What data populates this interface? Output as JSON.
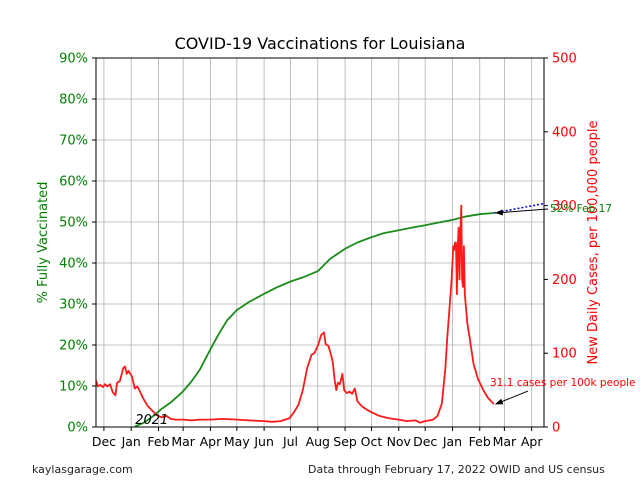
{
  "chart_data": {
    "type": "line",
    "title": "COVID-19 Vaccinations for Louisiana",
    "x_tick_labels": [
      "Dec",
      "Jan",
      "Feb",
      "Mar",
      "Apr",
      "May",
      "Jun",
      "Jul",
      "Aug",
      "Sep",
      "Oct",
      "Nov",
      "Dec",
      "Jan",
      "Feb",
      "Mar",
      "Apr"
    ],
    "x_tick_dates": [
      "2020-12-01",
      "2021-01-01",
      "2021-02-01",
      "2021-03-01",
      "2021-04-01",
      "2021-05-01",
      "2021-06-01",
      "2021-07-01",
      "2021-08-01",
      "2021-09-01",
      "2021-10-01",
      "2021-11-01",
      "2021-12-01",
      "2022-01-01",
      "2022-02-01",
      "2022-03-01",
      "2022-04-01"
    ],
    "xlim": [
      "2020-11-22",
      "2022-04-15"
    ],
    "year_marker": {
      "label": "2021",
      "date": "2021-01-01"
    },
    "y_left": {
      "label": "% Fully Vaccinated",
      "range": [
        0,
        90
      ],
      "ticks": [
        0,
        10,
        20,
        30,
        40,
        50,
        60,
        70,
        80,
        90
      ],
      "tick_suffix": "%",
      "color": "#008000"
    },
    "y_right": {
      "label": "New Daily Cases, per 100,000 people",
      "range": [
        0,
        500
      ],
      "ticks": [
        0,
        100,
        200,
        300,
        400,
        500
      ],
      "color": "#ff0000"
    },
    "grid": true,
    "series": [
      {
        "axis": "left",
        "color": "#1a8c1a",
        "points": [
          [
            "2021-01-05",
            0.1
          ],
          [
            "2021-01-15",
            1.0
          ],
          [
            "2021-01-25",
            2.5
          ],
          [
            "2021-02-05",
            4.5
          ],
          [
            "2021-02-15",
            6.0
          ],
          [
            "2021-02-28",
            8.5
          ],
          [
            "2021-03-10",
            11.0
          ],
          [
            "2021-03-20",
            14.0
          ],
          [
            "2021-03-31",
            18.5
          ],
          [
            "2021-04-10",
            22.5
          ],
          [
            "2021-04-20",
            26.0
          ],
          [
            "2021-05-01",
            28.5
          ],
          [
            "2021-05-15",
            30.5
          ],
          [
            "2021-06-01",
            32.5
          ],
          [
            "2021-06-15",
            34.0
          ],
          [
            "2021-07-01",
            35.5
          ],
          [
            "2021-07-15",
            36.5
          ],
          [
            "2021-08-01",
            38.0
          ],
          [
            "2021-08-15",
            41.0
          ],
          [
            "2021-09-01",
            43.5
          ],
          [
            "2021-09-15",
            45.0
          ],
          [
            "2021-10-01",
            46.3
          ],
          [
            "2021-10-15",
            47.3
          ],
          [
            "2021-11-01",
            48.0
          ],
          [
            "2021-11-15",
            48.6
          ],
          [
            "2021-12-01",
            49.2
          ],
          [
            "2021-12-15",
            49.8
          ],
          [
            "2022-01-01",
            50.5
          ],
          [
            "2022-01-15",
            51.3
          ],
          [
            "2022-02-01",
            51.9
          ],
          [
            "2022-02-17",
            52.2
          ]
        ]
      },
      {
        "axis": "right",
        "color": "#ff1a1a",
        "points": [
          [
            "2020-11-22",
            63
          ],
          [
            "2020-11-24",
            55
          ],
          [
            "2020-11-27",
            57
          ],
          [
            "2020-11-30",
            54
          ],
          [
            "2020-12-02",
            58
          ],
          [
            "2020-12-05",
            55
          ],
          [
            "2020-12-08",
            58
          ],
          [
            "2020-12-11",
            47
          ],
          [
            "2020-12-14",
            43
          ],
          [
            "2020-12-16",
            60
          ],
          [
            "2020-12-19",
            62
          ],
          [
            "2020-12-23",
            80
          ],
          [
            "2020-12-25",
            82
          ],
          [
            "2020-12-27",
            72
          ],
          [
            "2020-12-29",
            76
          ],
          [
            "2021-01-02",
            68
          ],
          [
            "2021-01-05",
            52
          ],
          [
            "2021-01-08",
            55
          ],
          [
            "2021-01-11",
            48
          ],
          [
            "2021-01-15",
            38
          ],
          [
            "2021-01-20",
            28
          ],
          [
            "2021-01-25",
            22
          ],
          [
            "2021-01-30",
            16
          ],
          [
            "2021-02-05",
            13
          ],
          [
            "2021-02-10",
            15
          ],
          [
            "2021-02-15",
            11
          ],
          [
            "2021-02-20",
            10
          ],
          [
            "2021-03-01",
            10
          ],
          [
            "2021-03-10",
            9
          ],
          [
            "2021-03-20",
            10
          ],
          [
            "2021-04-01",
            10
          ],
          [
            "2021-04-15",
            11
          ],
          [
            "2021-05-01",
            10
          ],
          [
            "2021-05-15",
            9
          ],
          [
            "2021-06-01",
            8
          ],
          [
            "2021-06-10",
            7
          ],
          [
            "2021-06-20",
            8
          ],
          [
            "2021-06-30",
            12
          ],
          [
            "2021-07-05",
            20
          ],
          [
            "2021-07-10",
            30
          ],
          [
            "2021-07-15",
            50
          ],
          [
            "2021-07-20",
            80
          ],
          [
            "2021-07-25",
            98
          ],
          [
            "2021-07-28",
            100
          ],
          [
            "2021-08-01",
            110
          ],
          [
            "2021-08-05",
            125
          ],
          [
            "2021-08-08",
            128
          ],
          [
            "2021-08-10",
            112
          ],
          [
            "2021-08-13",
            110
          ],
          [
            "2021-08-16",
            98
          ],
          [
            "2021-08-18",
            88
          ],
          [
            "2021-08-20",
            65
          ],
          [
            "2021-08-22",
            50
          ],
          [
            "2021-08-24",
            60
          ],
          [
            "2021-08-26",
            58
          ],
          [
            "2021-08-29",
            72
          ],
          [
            "2021-08-31",
            50
          ],
          [
            "2021-09-03",
            46
          ],
          [
            "2021-09-06",
            48
          ],
          [
            "2021-09-09",
            45
          ],
          [
            "2021-09-12",
            52
          ],
          [
            "2021-09-15",
            35
          ],
          [
            "2021-09-20",
            28
          ],
          [
            "2021-09-25",
            24
          ],
          [
            "2021-10-01",
            20
          ],
          [
            "2021-10-10",
            15
          ],
          [
            "2021-10-20",
            12
          ],
          [
            "2021-11-01",
            10
          ],
          [
            "2021-11-10",
            8
          ],
          [
            "2021-11-20",
            9
          ],
          [
            "2021-11-25",
            6
          ],
          [
            "2021-12-01",
            8
          ],
          [
            "2021-12-10",
            10
          ],
          [
            "2021-12-15",
            15
          ],
          [
            "2021-12-20",
            32
          ],
          [
            "2021-12-24",
            80
          ],
          [
            "2021-12-26",
            120
          ],
          [
            "2021-12-28",
            150
          ],
          [
            "2021-12-31",
            200
          ],
          [
            "2022-01-02",
            245
          ],
          [
            "2022-01-03",
            240
          ],
          [
            "2022-01-04",
            250
          ],
          [
            "2022-01-05",
            250
          ],
          [
            "2022-01-06",
            180
          ],
          [
            "2022-01-07",
            240
          ],
          [
            "2022-01-08",
            270
          ],
          [
            "2022-01-09",
            200
          ],
          [
            "2022-01-10",
            265
          ],
          [
            "2022-01-11",
            300
          ],
          [
            "2022-01-12",
            200
          ],
          [
            "2022-01-13",
            190
          ],
          [
            "2022-01-14",
            245
          ],
          [
            "2022-01-15",
            180
          ],
          [
            "2022-01-18",
            140
          ],
          [
            "2022-01-20",
            125
          ],
          [
            "2022-01-25",
            85
          ],
          [
            "2022-01-30",
            65
          ],
          [
            "2022-02-05",
            50
          ],
          [
            "2022-02-10",
            40
          ],
          [
            "2022-02-14",
            35
          ],
          [
            "2022-02-17",
            31
          ]
        ]
      }
    ],
    "projection": {
      "color": "#0000cc",
      "style": "dotted",
      "axis": "left",
      "from": [
        "2022-02-17",
        52.2
      ],
      "to": [
        "2022-04-15",
        54.5
      ]
    },
    "annotations": [
      {
        "text": "52% Feb 17",
        "axis": "left",
        "target": [
          "2022-02-17",
          52.2
        ],
        "color": "#008000"
      },
      {
        "text": "31.1 cases per 100k people",
        "axis": "right",
        "target": [
          "2022-02-17",
          31.1
        ],
        "color": "#ff0000"
      }
    ]
  },
  "footer": {
    "left": "kaylasgarage.com",
    "right": "Data through February 17, 2022 OWID and US census"
  }
}
